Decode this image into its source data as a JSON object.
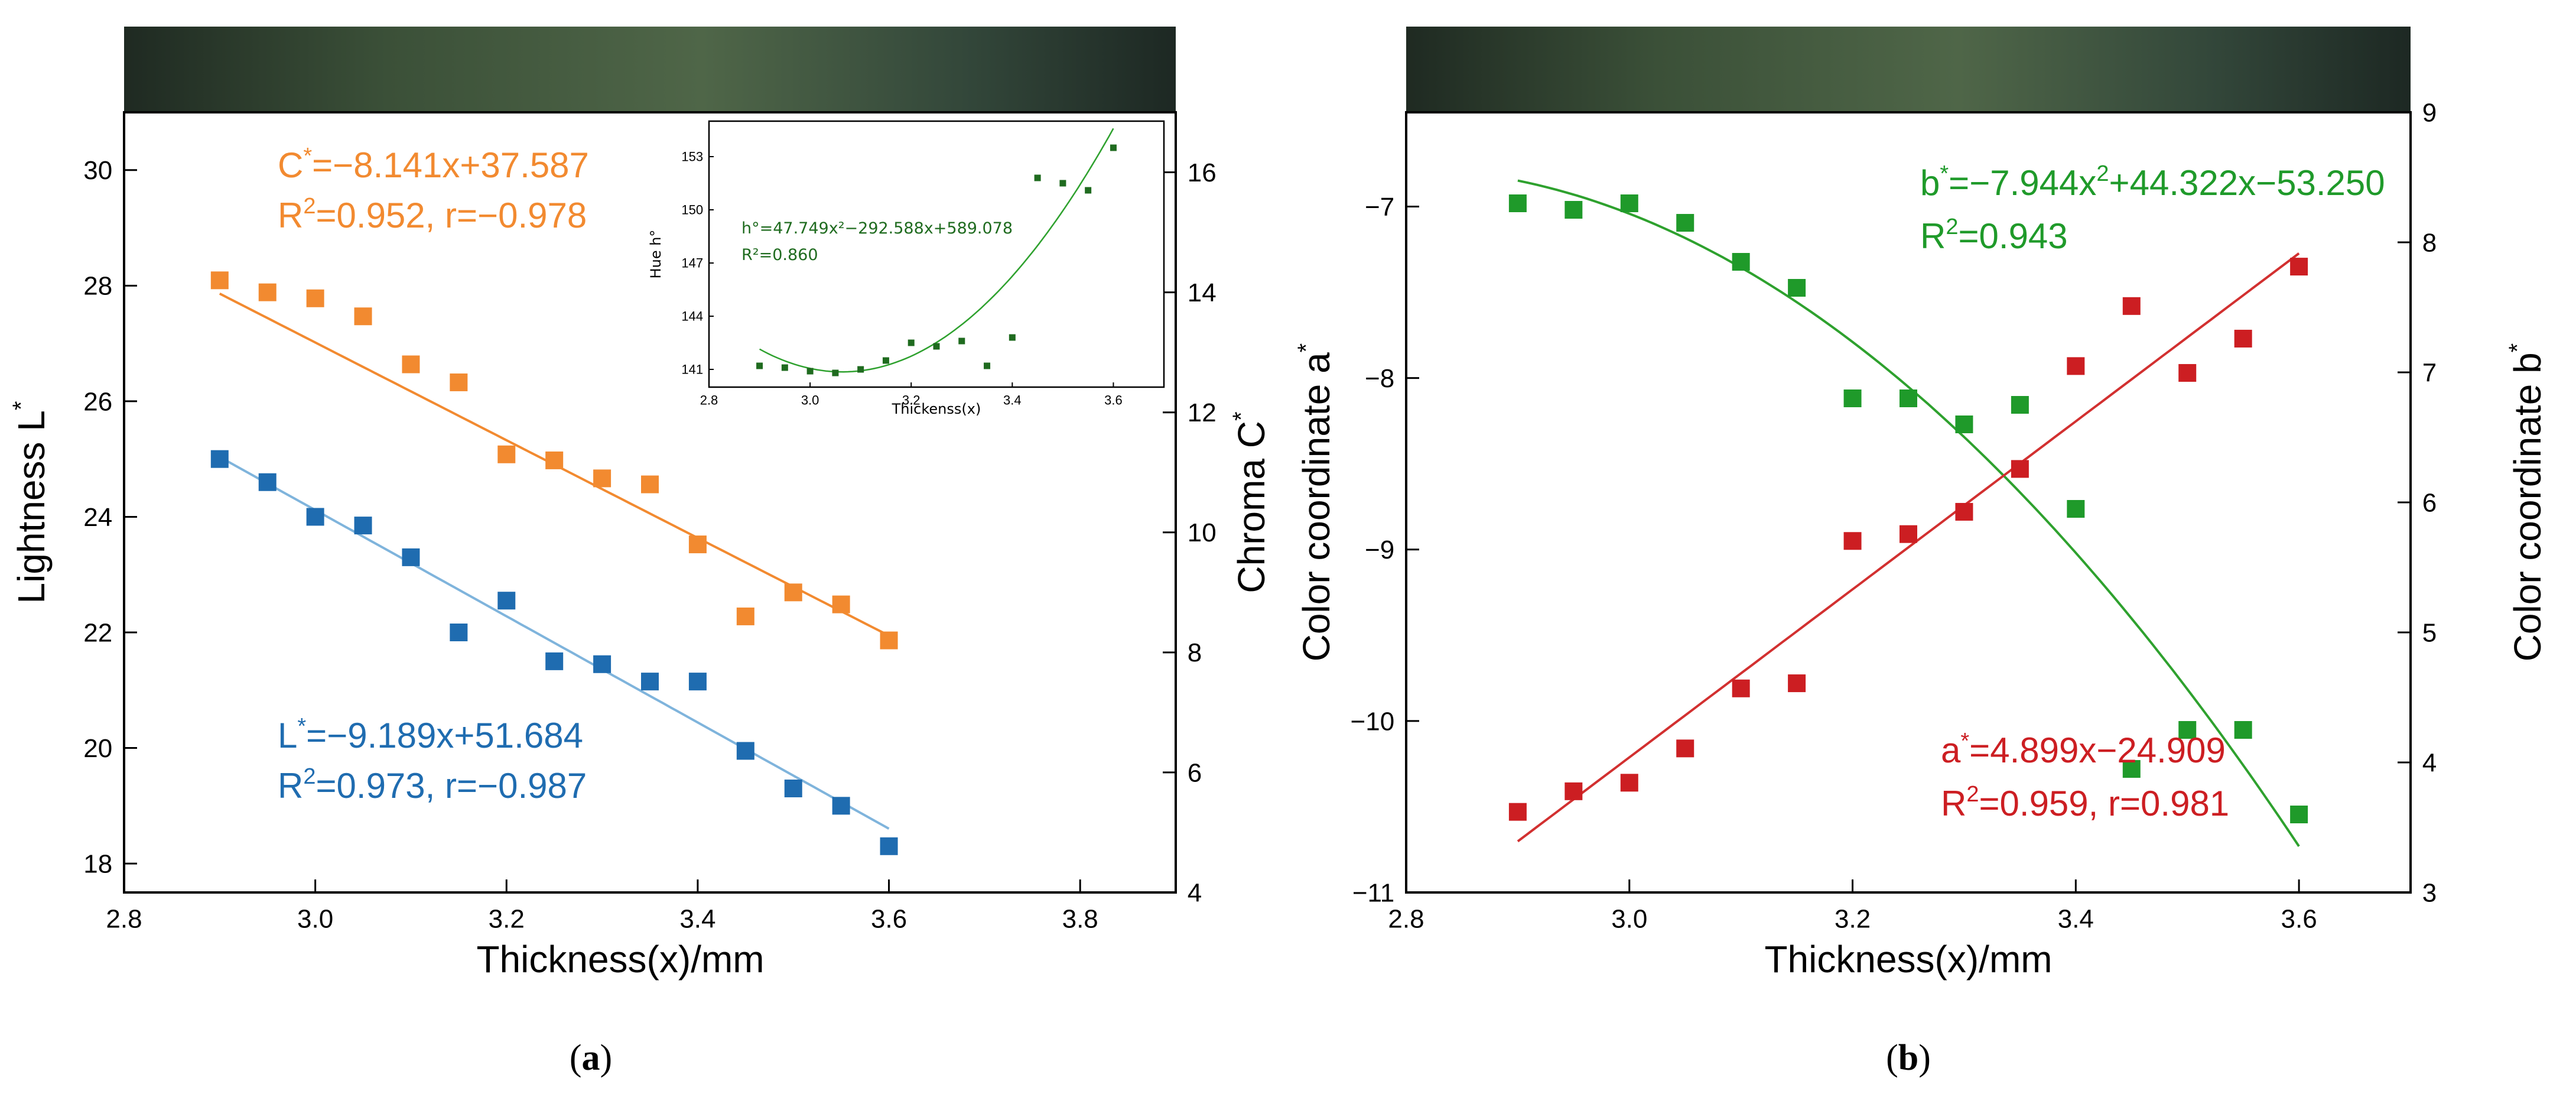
{
  "colors": {
    "orange": "#f28a30",
    "blue": "#1f6cb0",
    "green": "#1f9a2a",
    "red": "#cc1e22",
    "inset_green": "#1f6b1f",
    "fit_blue": "#7fb4dc",
    "fit_green": "#2ea12e",
    "fit_red": "#d23030",
    "band_dark": "#263528",
    "band_mid": "#4c6346"
  },
  "chart_data": [
    {
      "type": "scatter",
      "panel_label": "a",
      "xlabel": "Thickness(x)/mm",
      "ylabel_left": "Lightness L*",
      "ylabel_right": "Chroma C*",
      "xlim": [
        2.8,
        3.9
      ],
      "ylim_left": [
        17.5,
        31
      ],
      "ylim_right": [
        4,
        17
      ],
      "xticks": [
        "2.8",
        "3.0",
        "3.2",
        "3.4",
        "3.6",
        "3.8"
      ],
      "yticks_left": [
        "18",
        "20",
        "22",
        "24",
        "26",
        "28",
        "30"
      ],
      "yticks_right": [
        "4",
        "6",
        "8",
        "10",
        "12",
        "14",
        "16"
      ],
      "grid": false,
      "series": [
        {
          "axis": "right",
          "color": "orange",
          "x": [
            2.9,
            2.95,
            3.0,
            3.05,
            3.1,
            3.15,
            3.2,
            3.25,
            3.3,
            3.35,
            3.4,
            3.45,
            3.5,
            3.55,
            3.6
          ],
          "y": [
            14.2,
            14.0,
            13.9,
            13.6,
            12.8,
            12.5,
            11.3,
            11.2,
            10.9,
            10.8,
            9.8,
            8.6,
            9.0,
            8.8,
            8.2
          ],
          "fit": [
            -8.141,
            37.587
          ],
          "equation": "C*=−8.141x+37.587",
          "stats": "R²=0.952, r=−0.978"
        },
        {
          "axis": "left",
          "color": "blue",
          "x": [
            2.9,
            2.95,
            3.0,
            3.05,
            3.1,
            3.15,
            3.2,
            3.25,
            3.3,
            3.35,
            3.4,
            3.45,
            3.5,
            3.55,
            3.6
          ],
          "y": [
            25.0,
            24.6,
            24.0,
            23.85,
            23.3,
            22.0,
            22.55,
            21.5,
            21.45,
            21.15,
            21.15,
            19.95,
            19.3,
            19.0,
            18.3
          ],
          "fit": [
            -9.189,
            51.684
          ],
          "equation": "L*=−9.189x+51.684",
          "stats": "R²=0.973, r=−0.987"
        }
      ],
      "inset": {
        "type": "scatter",
        "xlabel": "Thickenss(x)",
        "ylabel": "Hue h°",
        "xlim": [
          2.8,
          3.7
        ],
        "ylim": [
          140,
          155
        ],
        "xticks": [
          "2.8",
          "3.0",
          "3.2",
          "3.4",
          "3.6"
        ],
        "yticks": [
          "141",
          "144",
          "147",
          "150",
          "153"
        ],
        "x": [
          2.9,
          2.95,
          3.0,
          3.05,
          3.1,
          3.15,
          3.2,
          3.25,
          3.3,
          3.35,
          3.4,
          3.45,
          3.5,
          3.55,
          3.6
        ],
        "y": [
          141.2,
          141.1,
          140.9,
          140.8,
          141.0,
          141.5,
          142.5,
          142.3,
          142.6,
          141.2,
          142.8,
          151.8,
          151.5,
          151.1,
          153.5
        ],
        "fit": [
          47.749,
          -292.588,
          589.078
        ],
        "equation": "h°=47.749x²−292.588x+589.078",
        "stats": "R²=0.860"
      }
    },
    {
      "type": "scatter",
      "panel_label": "b",
      "xlabel": "Thickness(x)/mm",
      "ylabel_left": "Color coordinate a*",
      "ylabel_right": "Color coordinate b*",
      "xlim": [
        2.8,
        3.7
      ],
      "ylim_left": [
        -11,
        -6.45
      ],
      "ylim_right": [
        3,
        9
      ],
      "xticks": [
        "2.8",
        "3.0",
        "3.2",
        "3.4",
        "3.6"
      ],
      "yticks_left": [
        "−11",
        "−10",
        "−9",
        "−8",
        "−7"
      ],
      "yticks_right": [
        "3",
        "4",
        "5",
        "6",
        "7",
        "8",
        "9"
      ],
      "grid": false,
      "series": [
        {
          "axis": "right",
          "color": "green",
          "x": [
            2.9,
            2.95,
            3.0,
            3.05,
            3.1,
            3.15,
            3.2,
            3.25,
            3.3,
            3.35,
            3.4,
            3.45,
            3.5,
            3.55,
            3.6
          ],
          "y": [
            8.3,
            8.25,
            8.3,
            8.15,
            7.85,
            7.65,
            6.8,
            6.8,
            6.6,
            6.75,
            5.95,
            3.95,
            4.25,
            4.25,
            3.6
          ],
          "fit": [
            -7.944,
            44.322,
            -53.25
          ],
          "equation": "b*=−7.944x²+44.322x−53.250",
          "stats": "R²=0.943"
        },
        {
          "axis": "left",
          "color": "red",
          "x": [
            2.9,
            2.95,
            3.0,
            3.05,
            3.1,
            3.15,
            3.2,
            3.25,
            3.3,
            3.35,
            3.4,
            3.45,
            3.5,
            3.55,
            3.6
          ],
          "y": [
            -10.53,
            -10.41,
            -10.36,
            -10.16,
            -9.81,
            -9.78,
            -8.95,
            -8.91,
            -8.78,
            -8.53,
            -7.93,
            -7.58,
            -7.97,
            -7.77,
            -7.35
          ],
          "fit": [
            4.899,
            -24.909
          ],
          "equation": "a*=4.899x−24.909",
          "stats": "R²=0.959, r=0.981"
        }
      ]
    }
  ]
}
